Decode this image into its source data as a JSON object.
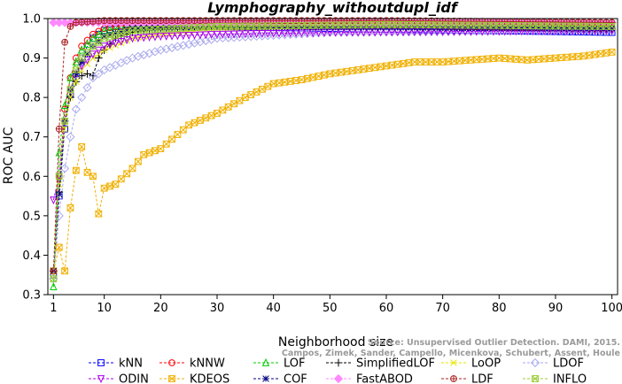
{
  "chart_data": {
    "type": "line",
    "title": "Lymphography_withoutdupl_idf",
    "xlabel": "Neighborhood size",
    "ylabel": "ROC AUC",
    "xlim": [
      0,
      101
    ],
    "ylim": [
      0.3,
      1.0
    ],
    "x_ticks": [
      "1",
      "10",
      "20",
      "30",
      "40",
      "50",
      "60",
      "70",
      "80",
      "90",
      "100"
    ],
    "y_ticks": [
      "0.3",
      "0.4",
      "0.5",
      "0.6",
      "0.7",
      "0.8",
      "0.9",
      "1.0"
    ],
    "legend_position": "bottom",
    "grid": false,
    "watermark": [
      "Source: Unsupervised Outlier Detection. DAMI, 2015.",
      "Campos, Zimek, Sander, Campello, Micenkova, Schubert, Assent, Houle"
    ],
    "series": [
      {
        "name": "kNN",
        "color": "#0000ff",
        "marker": "square",
        "keypoints": [
          [
            1,
            0.35
          ],
          [
            2,
            0.55
          ],
          [
            3,
            0.72
          ],
          [
            4,
            0.81
          ],
          [
            5,
            0.86
          ],
          [
            6,
            0.9
          ],
          [
            7,
            0.93
          ],
          [
            8,
            0.95
          ],
          [
            10,
            0.97
          ],
          [
            15,
            0.98
          ],
          [
            30,
            0.98
          ],
          [
            50,
            0.975
          ],
          [
            75,
            0.97
          ],
          [
            100,
            0.965
          ]
        ]
      },
      {
        "name": "kNNW",
        "color": "#ff0000",
        "marker": "circle",
        "keypoints": [
          [
            1,
            0.36
          ],
          [
            2,
            0.6
          ],
          [
            3,
            0.77
          ],
          [
            4,
            0.85
          ],
          [
            5,
            0.9
          ],
          [
            6,
            0.93
          ],
          [
            8,
            0.96
          ],
          [
            10,
            0.975
          ],
          [
            15,
            0.985
          ],
          [
            40,
            0.985
          ],
          [
            100,
            0.975
          ]
        ]
      },
      {
        "name": "LOF",
        "color": "#00cc00",
        "marker": "triangle-up",
        "keypoints": [
          [
            1,
            0.32
          ],
          [
            2,
            0.66
          ],
          [
            3,
            0.78
          ],
          [
            4,
            0.85
          ],
          [
            5,
            0.89
          ],
          [
            6,
            0.92
          ],
          [
            8,
            0.95
          ],
          [
            10,
            0.97
          ],
          [
            15,
            0.98
          ],
          [
            30,
            0.985
          ],
          [
            60,
            0.985
          ],
          [
            100,
            0.98
          ]
        ]
      },
      {
        "name": "SimplifiedLOF",
        "color": "#000000",
        "marker": "plus",
        "keypoints": [
          [
            1,
            0.36
          ],
          [
            2,
            0.56
          ],
          [
            3,
            0.74
          ],
          [
            4,
            0.8
          ],
          [
            5,
            0.84
          ],
          [
            6,
            0.855
          ],
          [
            7,
            0.86
          ],
          [
            8,
            0.855
          ],
          [
            9,
            0.9
          ],
          [
            10,
            0.92
          ],
          [
            12,
            0.95
          ],
          [
            15,
            0.965
          ],
          [
            20,
            0.975
          ],
          [
            30,
            0.98
          ],
          [
            60,
            0.98
          ],
          [
            100,
            0.975
          ]
        ]
      },
      {
        "name": "LoOP",
        "color": "#e6e600",
        "marker": "x",
        "keypoints": [
          [
            1,
            0.34
          ],
          [
            2,
            0.58
          ],
          [
            3,
            0.72
          ],
          [
            4,
            0.8
          ],
          [
            5,
            0.84
          ],
          [
            6,
            0.87
          ],
          [
            8,
            0.9
          ],
          [
            10,
            0.92
          ],
          [
            15,
            0.95
          ],
          [
            20,
            0.96
          ],
          [
            30,
            0.975
          ],
          [
            50,
            0.98
          ],
          [
            100,
            0.98
          ]
        ]
      },
      {
        "name": "LDOF",
        "color": "#aaaaee",
        "marker": "diamond",
        "keypoints": [
          [
            1,
            0.34
          ],
          [
            2,
            0.5
          ],
          [
            3,
            0.62
          ],
          [
            4,
            0.7
          ],
          [
            5,
            0.77
          ],
          [
            6,
            0.8
          ],
          [
            8,
            0.85
          ],
          [
            10,
            0.87
          ],
          [
            15,
            0.9
          ],
          [
            20,
            0.92
          ],
          [
            30,
            0.95
          ],
          [
            50,
            0.965
          ],
          [
            100,
            0.97
          ]
        ]
      },
      {
        "name": "ODIN",
        "color": "#aa00ee",
        "marker": "triangle-down",
        "keypoints": [
          [
            1,
            0.54
          ],
          [
            2,
            0.6
          ],
          [
            3,
            0.74
          ],
          [
            4,
            0.82
          ],
          [
            5,
            0.86
          ],
          [
            6,
            0.88
          ],
          [
            8,
            0.91
          ],
          [
            10,
            0.93
          ],
          [
            15,
            0.95
          ],
          [
            20,
            0.955
          ],
          [
            30,
            0.96
          ],
          [
            50,
            0.965
          ],
          [
            100,
            0.97
          ]
        ]
      },
      {
        "name": "KDEOS",
        "color": "#f0b000",
        "marker": "square-x",
        "keypoints": [
          [
            1,
            0.36
          ],
          [
            2,
            0.42
          ],
          [
            3,
            0.36
          ],
          [
            4,
            0.52
          ],
          [
            5,
            0.615
          ],
          [
            6,
            0.675
          ],
          [
            7,
            0.61
          ],
          [
            8,
            0.6
          ],
          [
            9,
            0.505
          ],
          [
            10,
            0.57
          ],
          [
            12,
            0.58
          ],
          [
            15,
            0.62
          ],
          [
            17,
            0.655
          ],
          [
            20,
            0.67
          ],
          [
            25,
            0.73
          ],
          [
            30,
            0.76
          ],
          [
            35,
            0.8
          ],
          [
            40,
            0.835
          ],
          [
            45,
            0.845
          ],
          [
            50,
            0.86
          ],
          [
            55,
            0.87
          ],
          [
            60,
            0.88
          ],
          [
            65,
            0.89
          ],
          [
            70,
            0.89
          ],
          [
            75,
            0.895
          ],
          [
            80,
            0.9
          ],
          [
            85,
            0.895
          ],
          [
            90,
            0.9
          ],
          [
            95,
            0.905
          ],
          [
            100,
            0.915
          ]
        ]
      },
      {
        "name": "COF",
        "color": "#000080",
        "marker": "asterisk",
        "keypoints": [
          [
            1,
            0.36
          ],
          [
            2,
            0.555
          ],
          [
            3,
            0.74
          ],
          [
            4,
            0.82
          ],
          [
            5,
            0.86
          ],
          [
            6,
            0.89
          ],
          [
            7,
            0.91
          ],
          [
            8,
            0.93
          ],
          [
            10,
            0.955
          ],
          [
            15,
            0.975
          ],
          [
            30,
            0.98
          ],
          [
            100,
            0.975
          ]
        ]
      },
      {
        "name": "FastABOD",
        "color": "#ff88ff",
        "marker": "diamond-filled",
        "keypoints": [
          [
            1,
            0.99
          ],
          [
            3,
            0.99
          ],
          [
            10,
            0.99
          ],
          [
            30,
            0.99
          ],
          [
            60,
            0.99
          ],
          [
            100,
            0.99
          ]
        ]
      },
      {
        "name": "LDF",
        "color": "#aa2222",
        "marker": "circle-plus",
        "keypoints": [
          [
            1,
            0.36
          ],
          [
            2,
            0.72
          ],
          [
            3,
            0.94
          ],
          [
            4,
            0.98
          ],
          [
            5,
            0.99
          ],
          [
            10,
            0.995
          ],
          [
            30,
            0.995
          ],
          [
            60,
            0.995
          ],
          [
            100,
            0.99
          ]
        ]
      },
      {
        "name": "INFLO",
        "color": "#99cc33",
        "marker": "square-x",
        "keypoints": [
          [
            1,
            0.34
          ],
          [
            2,
            0.6
          ],
          [
            3,
            0.74
          ],
          [
            4,
            0.82
          ],
          [
            5,
            0.87
          ],
          [
            6,
            0.9
          ],
          [
            8,
            0.93
          ],
          [
            10,
            0.95
          ],
          [
            15,
            0.97
          ],
          [
            30,
            0.98
          ],
          [
            60,
            0.985
          ],
          [
            100,
            0.98
          ]
        ]
      }
    ]
  }
}
